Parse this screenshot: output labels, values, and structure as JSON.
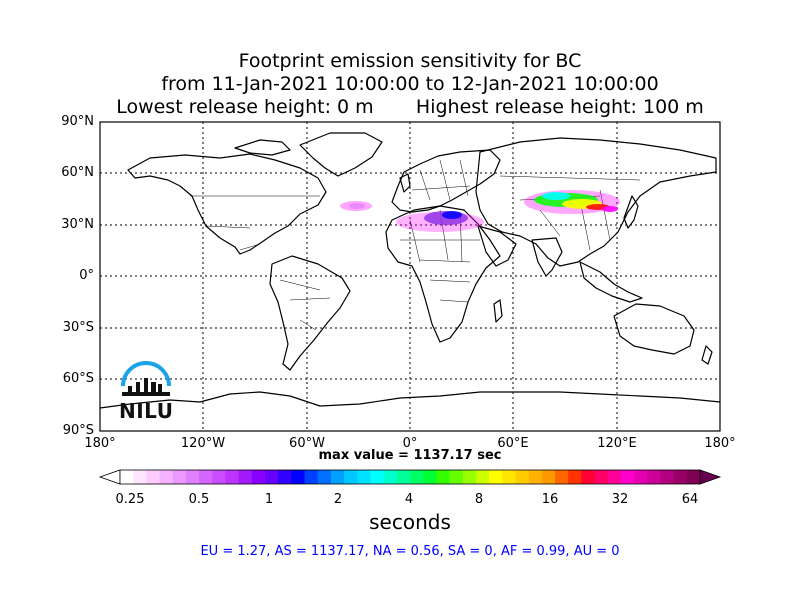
{
  "title": {
    "line1": "Footprint emission sensitivity for BC",
    "line2": "from 11-Jan-2021 10:00:00 to 12-Jan-2021 10:00:00",
    "line3": "Lowest release height: 0 m       Highest release height: 100 m"
  },
  "map": {
    "lat_labels": [
      "90°N",
      "60°N",
      "30°N",
      "0°",
      "30°S",
      "60°S",
      "90°S"
    ],
    "lon_labels": [
      "180°",
      "120°W",
      "60°W",
      "0°",
      "60°E",
      "120°E",
      "180°"
    ],
    "plume_colors": [
      "#ff00ff",
      "#8a2be2",
      "#0000ff",
      "#00ffff",
      "#00ff00",
      "#ffff00",
      "#ff0000",
      "#cc66ff"
    ]
  },
  "max_value": "max value = 1137.17 sec",
  "colorbar": {
    "label": "seconds",
    "ticks": [
      "0.25",
      "0.5",
      "1",
      "2",
      "4",
      "8",
      "16",
      "32",
      "64"
    ],
    "colors": [
      "#ffffff",
      "#ffe6ff",
      "#ffccff",
      "#f5b3ff",
      "#eb99ff",
      "#e080ff",
      "#d466ff",
      "#c94dff",
      "#bf33ff",
      "#a31aff",
      "#8800ff",
      "#6600ff",
      "#3300ff",
      "#0000ff",
      "#0040ff",
      "#0070ff",
      "#00a0ff",
      "#00c8ff",
      "#00e0ff",
      "#00ffff",
      "#00ffcc",
      "#00ff99",
      "#00ff66",
      "#00ff33",
      "#33ff00",
      "#66ff00",
      "#99ff00",
      "#ccff00",
      "#ffff00",
      "#ffe600",
      "#ffcc00",
      "#ffb300",
      "#ff9900",
      "#ff6600",
      "#ff3300",
      "#ff0033",
      "#ff0066",
      "#ff0099",
      "#ff00cc",
      "#e600b3",
      "#cc0099",
      "#b30080",
      "#990066",
      "#800055"
    ]
  },
  "logo": {
    "text": "NILU"
  },
  "footer": "EU = 1.27,  AS = 1137.17,  NA = 0.56,  SA = 0,  AF = 0.99,  AU = 0"
}
